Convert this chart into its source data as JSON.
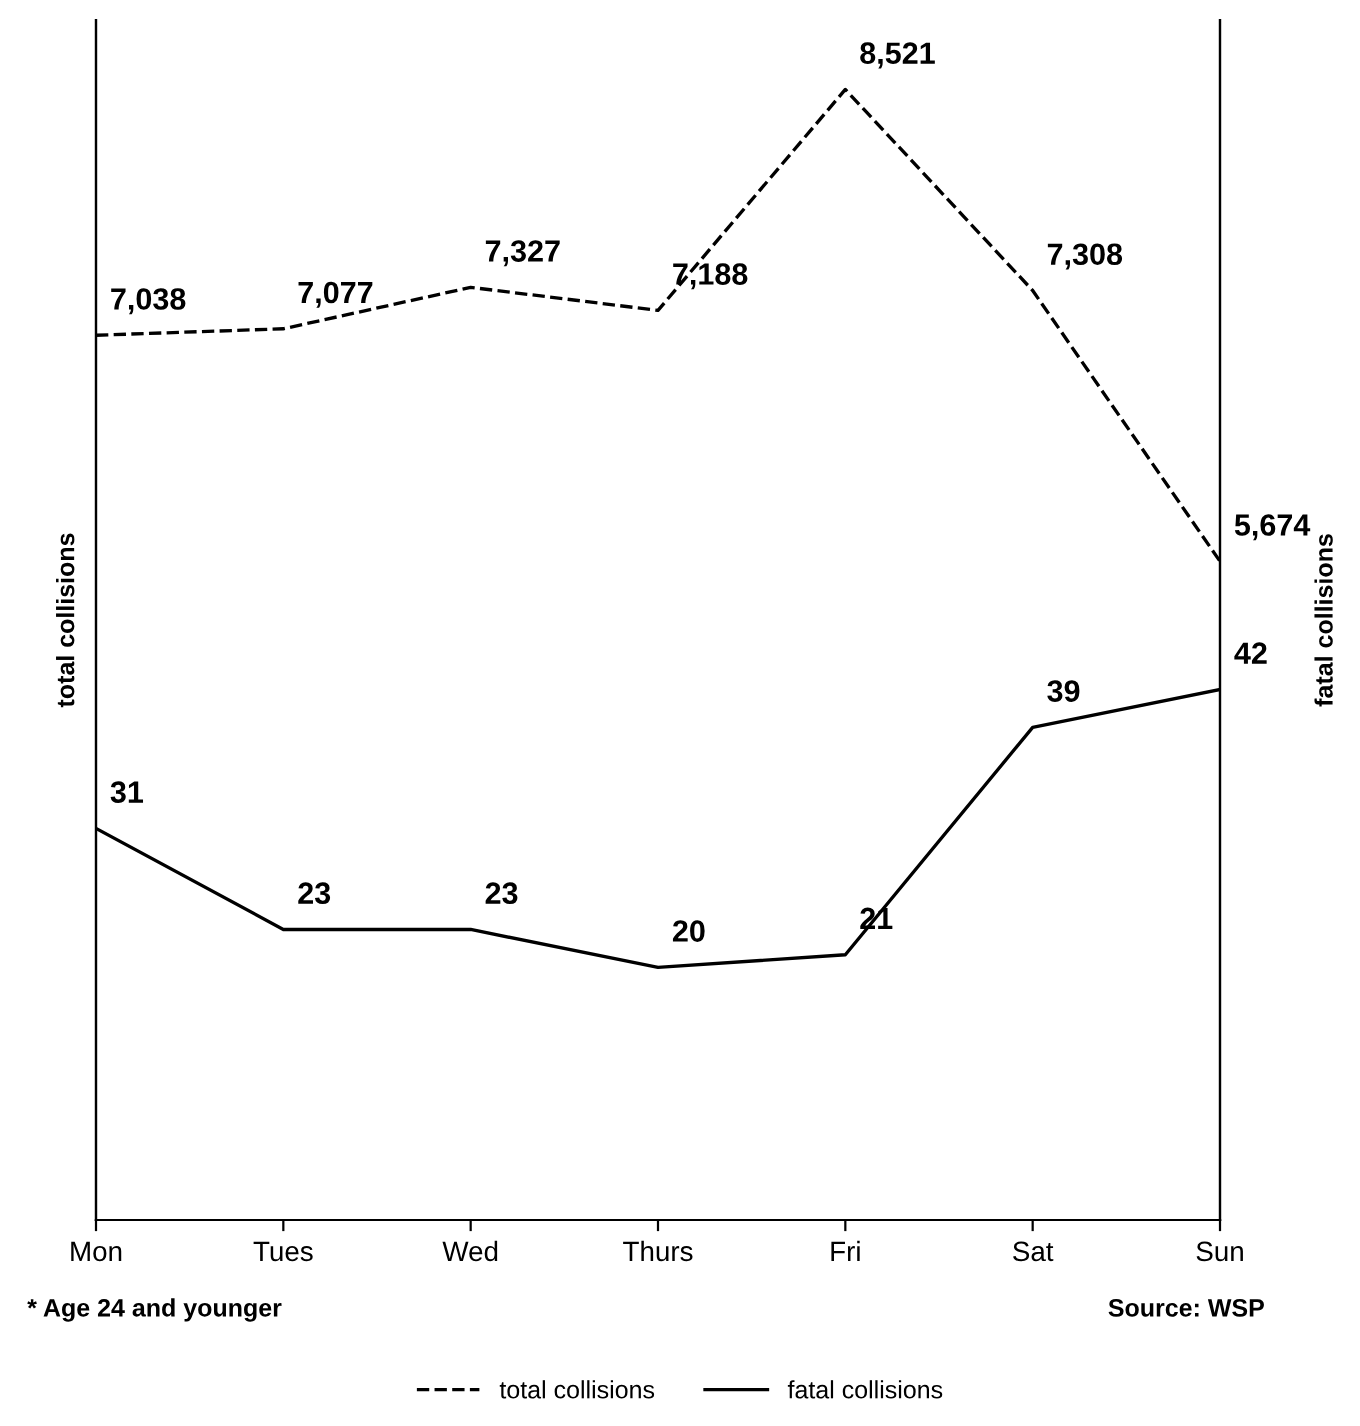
{
  "chart_data": {
    "type": "line",
    "categories": [
      "Mon",
      "Tues",
      "Wed",
      "Thurs",
      "Fri",
      "Sat",
      "Sun"
    ],
    "ylabel": "total collisions",
    "y2label": "fatal collisions",
    "series": [
      {
        "name": "total collisions",
        "color": "#000000",
        "line_style": "dashed",
        "values": [
          7038,
          7077,
          7327,
          7188,
          8521,
          7308,
          5674
        ],
        "value_labels": [
          "7,038",
          "7,077",
          "7,327",
          "7,188",
          "8,521",
          "7,308",
          "5,674"
        ]
      },
      {
        "name": "fatal collisions",
        "color": "#000000",
        "line_style": "solid",
        "axis": "y2",
        "values": [
          31,
          23,
          23,
          20,
          21,
          39,
          42
        ]
      }
    ],
    "ylim": [
      1700,
      8940
    ],
    "y2lim": [
      0,
      95
    ],
    "tick_labels": "x",
    "data_labels": true,
    "grid": false,
    "legend": "bottom",
    "marker": "none",
    "annotations": [
      "* Age 24 and younger",
      "Source: WSP"
    ]
  }
}
